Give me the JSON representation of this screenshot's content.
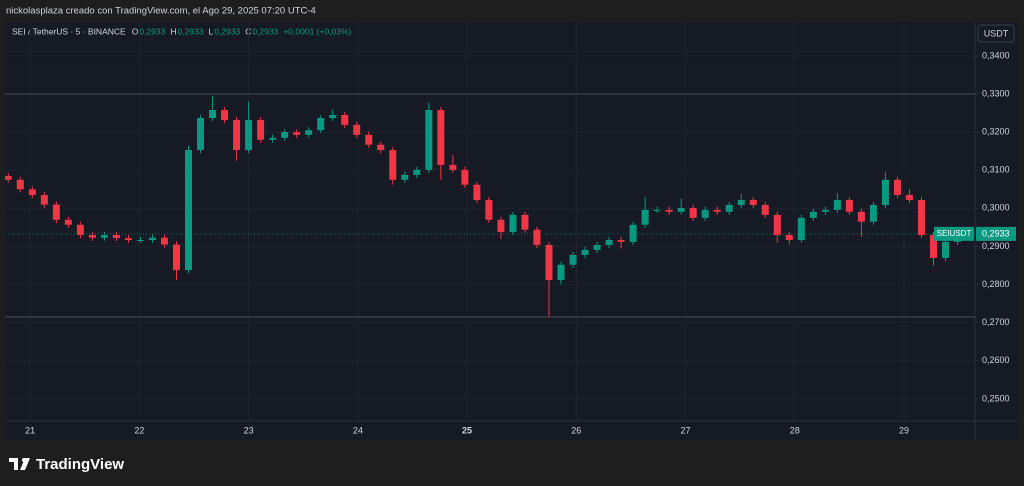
{
  "header": {
    "credit": "nickolasplaza creado con TradingView.com, el Ago 29, 2025 07:20 UTC-4"
  },
  "footer": {
    "brand": "TradingView"
  },
  "chart_data": {
    "type": "candlestick",
    "legend": {
      "symbol": "SEI / TetherUS · 5 · BINANCE",
      "ohlc": [
        {
          "key": "O",
          "text": "0,2933"
        },
        {
          "key": "H",
          "text": "0,2933"
        },
        {
          "key": "L",
          "text": "0,2933"
        },
        {
          "key": "C",
          "text": "0,2933"
        }
      ],
      "change": "+0,0001 (+0,03%)"
    },
    "currency": "USDT",
    "symbol_tag": "SEIUSDT",
    "last_price": {
      "value": 0.2933,
      "label": "0,2933"
    },
    "up_color": "#089981",
    "down_color": "#f23645",
    "reference_lines": [
      0.33,
      0.2715
    ],
    "grid": true,
    "xlim": [
      20.77,
      29.65
    ],
    "xticks": [
      21,
      22,
      23,
      24,
      25,
      26,
      27,
      28,
      29
    ],
    "xtick_bold": 25,
    "ylim": [
      0.2442,
      0.3489
    ],
    "yticks": [
      {
        "value": 0.25,
        "label": "0,2500"
      },
      {
        "value": 0.26,
        "label": "0,2600"
      },
      {
        "value": 0.27,
        "label": "0,2700"
      },
      {
        "value": 0.28,
        "label": "0,2800"
      },
      {
        "value": 0.29,
        "label": "0,2900"
      },
      {
        "value": 0.3,
        "label": "0,3000"
      },
      {
        "value": 0.31,
        "label": "0,3100"
      },
      {
        "value": 0.32,
        "label": "0,3200"
      },
      {
        "value": 0.33,
        "label": "0,3300"
      },
      {
        "value": 0.34,
        "label": "0,3400"
      }
    ],
    "x": [
      20.8,
      20.91,
      21.02,
      21.13,
      21.24,
      21.35,
      21.46,
      21.57,
      21.68,
      21.79,
      21.9,
      22.01,
      22.12,
      22.23,
      22.34,
      22.45,
      22.56,
      22.67,
      22.78,
      22.89,
      23.0,
      23.11,
      23.22,
      23.33,
      23.44,
      23.55,
      23.66,
      23.77,
      23.88,
      23.99,
      24.1,
      24.21,
      24.32,
      24.43,
      24.54,
      24.65,
      24.76,
      24.87,
      24.98,
      25.09,
      25.2,
      25.31,
      25.42,
      25.53,
      25.64,
      25.75,
      25.86,
      25.97,
      26.08,
      26.19,
      26.3,
      26.41,
      26.52,
      26.63,
      26.74,
      26.85,
      26.96,
      27.07,
      27.18,
      27.29,
      27.4,
      27.51,
      27.62,
      27.73,
      27.84,
      27.95,
      28.06,
      28.17,
      28.28,
      28.39,
      28.5,
      28.61,
      28.72,
      28.83,
      28.94,
      29.05,
      29.16,
      29.27,
      29.38,
      29.49,
      29.6
    ],
    "open": [
      0.3085,
      0.3075,
      0.305,
      0.3035,
      0.301,
      0.297,
      0.2957,
      0.293,
      0.2923,
      0.293,
      0.2922,
      0.2917,
      0.2917,
      0.2923,
      0.2905,
      0.2838,
      0.3153,
      0.3237,
      0.3258,
      0.3232,
      0.3153,
      0.3232,
      0.318,
      0.3185,
      0.32,
      0.3193,
      0.3205,
      0.3237,
      0.3245,
      0.3219,
      0.3193,
      0.3167,
      0.3153,
      0.3075,
      0.3088,
      0.3101,
      0.3258,
      0.3114,
      0.3101,
      0.3062,
      0.3022,
      0.297,
      0.2938,
      0.2983,
      0.2944,
      0.2904,
      0.2812,
      0.2852,
      0.2878,
      0.2891,
      0.2904,
      0.2917,
      0.2912,
      0.2957,
      0.2996,
      0.2996,
      0.2991,
      0.3001,
      0.2975,
      0.2996,
      0.2991,
      0.3009,
      0.3022,
      0.3009,
      0.2983,
      0.293,
      0.2917,
      0.2975,
      0.2991,
      0.2996,
      0.3022,
      0.2991,
      0.2965,
      0.3009,
      0.3075,
      0.3035,
      0.3022,
      0.293,
      0.287,
      0.2912,
      0.2928
    ],
    "high": [
      0.3093,
      0.3083,
      0.3058,
      0.3043,
      0.3018,
      0.2978,
      0.2965,
      0.2938,
      0.2938,
      0.2938,
      0.293,
      0.2925,
      0.2931,
      0.2931,
      0.2913,
      0.3165,
      0.3245,
      0.3295,
      0.3266,
      0.324,
      0.328,
      0.324,
      0.3193,
      0.3208,
      0.3208,
      0.3213,
      0.3245,
      0.326,
      0.3253,
      0.3227,
      0.3201,
      0.3175,
      0.3161,
      0.3096,
      0.3109,
      0.3277,
      0.3266,
      0.314,
      0.3109,
      0.307,
      0.303,
      0.2978,
      0.2991,
      0.2991,
      0.2952,
      0.2912,
      0.286,
      0.2886,
      0.2899,
      0.2912,
      0.2925,
      0.2925,
      0.2965,
      0.303,
      0.3004,
      0.3004,
      0.3025,
      0.3009,
      0.3004,
      0.3004,
      0.3017,
      0.3038,
      0.303,
      0.3017,
      0.2991,
      0.2938,
      0.2983,
      0.2999,
      0.3004,
      0.304,
      0.303,
      0.2999,
      0.3017,
      0.3095,
      0.3083,
      0.305,
      0.303,
      0.2938,
      0.292,
      0.2936,
      0.2941
    ],
    "low": [
      0.3067,
      0.3042,
      0.3027,
      0.3002,
      0.2962,
      0.2949,
      0.2922,
      0.2915,
      0.2915,
      0.2914,
      0.2909,
      0.2909,
      0.2909,
      0.2897,
      0.2812,
      0.283,
      0.3145,
      0.3229,
      0.3224,
      0.3125,
      0.3145,
      0.3172,
      0.3172,
      0.3177,
      0.3185,
      0.3185,
      0.3197,
      0.3229,
      0.3211,
      0.3185,
      0.3159,
      0.3145,
      0.3062,
      0.3067,
      0.308,
      0.3093,
      0.3075,
      0.3093,
      0.3054,
      0.3014,
      0.2962,
      0.292,
      0.293,
      0.2936,
      0.2896,
      0.2715,
      0.28,
      0.2844,
      0.287,
      0.2883,
      0.2896,
      0.2894,
      0.2904,
      0.2949,
      0.2988,
      0.2983,
      0.2983,
      0.2967,
      0.2967,
      0.2983,
      0.2983,
      0.3001,
      0.3001,
      0.2975,
      0.291,
      0.2905,
      0.2909,
      0.2967,
      0.2983,
      0.2988,
      0.2983,
      0.2925,
      0.2957,
      0.3001,
      0.3027,
      0.3014,
      0.2922,
      0.285,
      0.2862,
      0.2904,
      0.292
    ],
    "close": [
      0.3075,
      0.305,
      0.3035,
      0.301,
      0.297,
      0.2957,
      0.293,
      0.2923,
      0.293,
      0.2922,
      0.2917,
      0.2917,
      0.2923,
      0.2905,
      0.2838,
      0.3153,
      0.3237,
      0.3258,
      0.3232,
      0.3153,
      0.3232,
      0.318,
      0.3185,
      0.32,
      0.3193,
      0.3205,
      0.3237,
      0.3245,
      0.3219,
      0.3193,
      0.3167,
      0.3153,
      0.3075,
      0.3088,
      0.3101,
      0.3258,
      0.3114,
      0.3101,
      0.3062,
      0.3022,
      0.297,
      0.2938,
      0.2983,
      0.2944,
      0.2904,
      0.2812,
      0.2852,
      0.2878,
      0.2891,
      0.2904,
      0.2917,
      0.2912,
      0.2957,
      0.2996,
      0.2996,
      0.2991,
      0.3001,
      0.2975,
      0.2996,
      0.2991,
      0.3009,
      0.3022,
      0.3009,
      0.2983,
      0.293,
      0.2917,
      0.2975,
      0.2991,
      0.2996,
      0.3022,
      0.2991,
      0.2965,
      0.3009,
      0.3075,
      0.3035,
      0.3022,
      0.293,
      0.287,
      0.2912,
      0.2928,
      0.2933
    ]
  }
}
